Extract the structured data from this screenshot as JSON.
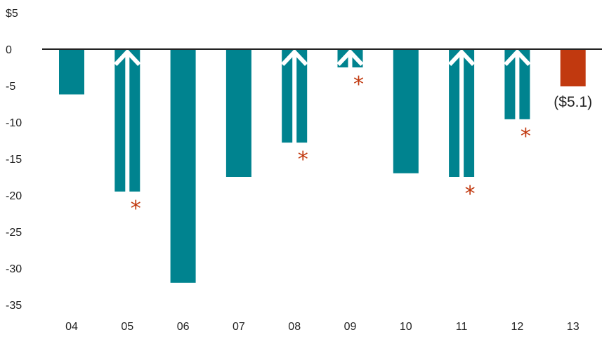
{
  "chart_data": {
    "type": "bar",
    "categories": [
      "04",
      "05",
      "06",
      "07",
      "08",
      "09",
      "10",
      "11",
      "12",
      "13"
    ],
    "values": [
      -6.2,
      -19.5,
      -32.0,
      -17.5,
      -12.8,
      -2.5,
      -17.0,
      -17.5,
      -9.6,
      -5.1
    ],
    "arrow_marked": [
      false,
      true,
      false,
      false,
      true,
      true,
      false,
      true,
      true,
      false
    ],
    "asterisk_marked": [
      false,
      true,
      false,
      false,
      true,
      true,
      false,
      true,
      true,
      false
    ],
    "asterisk_text": "*",
    "highlight_index": 9,
    "highlight_label": "($5.1)",
    "y_ticks": [
      "$5",
      "0",
      "-5",
      "-10",
      "-15",
      "-20",
      "-25",
      "-30",
      "-35"
    ],
    "y_tick_values": [
      5,
      0,
      -5,
      -10,
      -15,
      -20,
      -25,
      -30,
      -35
    ],
    "ylim": [
      -38,
      5
    ],
    "grid": false,
    "colors": {
      "bar": "#00838f",
      "highlight": "#c1390f",
      "asterisk": "#c1390f",
      "axis": "#222222"
    }
  }
}
